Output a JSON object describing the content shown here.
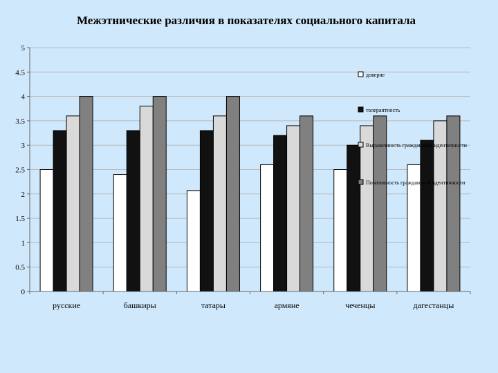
{
  "chart_data": {
    "type": "bar",
    "title": "Межэтнические различия в показателях социального капитала",
    "categories": [
      "русские",
      "башкиры",
      "татары",
      "армяне",
      "чеченцы",
      "дагестанцы"
    ],
    "series": [
      {
        "name": "доверие",
        "color": "#ffffff",
        "values": [
          2.5,
          2.4,
          2.07,
          2.6,
          2.5,
          2.6
        ]
      },
      {
        "name": "толерантность",
        "color": "#111111",
        "values": [
          3.3,
          3.3,
          3.3,
          3.2,
          3.0,
          3.1
        ]
      },
      {
        "name": "Выраженность гражданской идентичности",
        "color": "#d9d9d9",
        "values": [
          3.6,
          3.8,
          3.6,
          3.4,
          3.4,
          3.5
        ]
      },
      {
        "name": "Позитивность гражданской идентичности",
        "color": "#808080",
        "values": [
          4.0,
          4.0,
          4.0,
          3.6,
          3.6,
          3.6
        ]
      }
    ],
    "yticks": [
      "0",
      "0.5",
      "1",
      "1.5",
      "2",
      "2.5",
      "3",
      "3.5",
      "4",
      "4.5",
      "5"
    ],
    "ylim": [
      0,
      5
    ],
    "grid": true,
    "legend_position": "right"
  }
}
